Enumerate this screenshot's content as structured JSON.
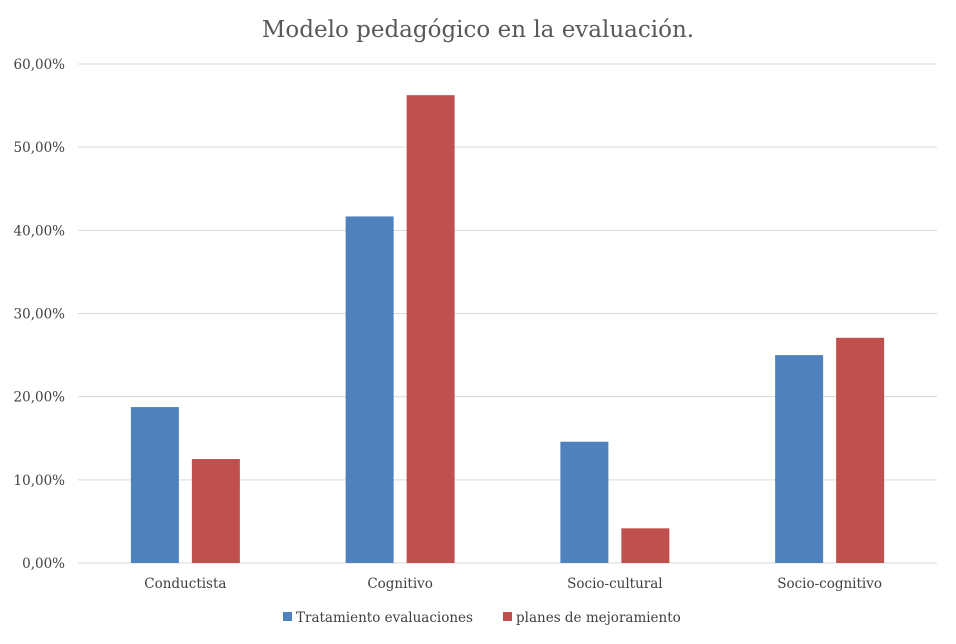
{
  "chart_data": {
    "type": "bar",
    "title": "Modelo pedagógico en la evaluación.",
    "xlabel": "",
    "ylabel": "",
    "ylim": [
      0,
      60
    ],
    "yticks": [
      "0,00%",
      "10,00%",
      "20,00%",
      "30,00%",
      "40,00%",
      "50,00%",
      "60,00%"
    ],
    "grid": true,
    "legend_position": "bottom",
    "categories": [
      "Conductista",
      "Cognitivo",
      "Socio-cultural",
      "Socio-cognitivo"
    ],
    "series": [
      {
        "name": "Tratamiento evaluaciones",
        "color": "#4f81bd",
        "values": [
          18.75,
          41.67,
          14.58,
          25.0
        ]
      },
      {
        "name": "planes de mejoramiento",
        "color": "#c0504d",
        "values": [
          12.5,
          56.25,
          4.17,
          27.08
        ]
      }
    ]
  }
}
